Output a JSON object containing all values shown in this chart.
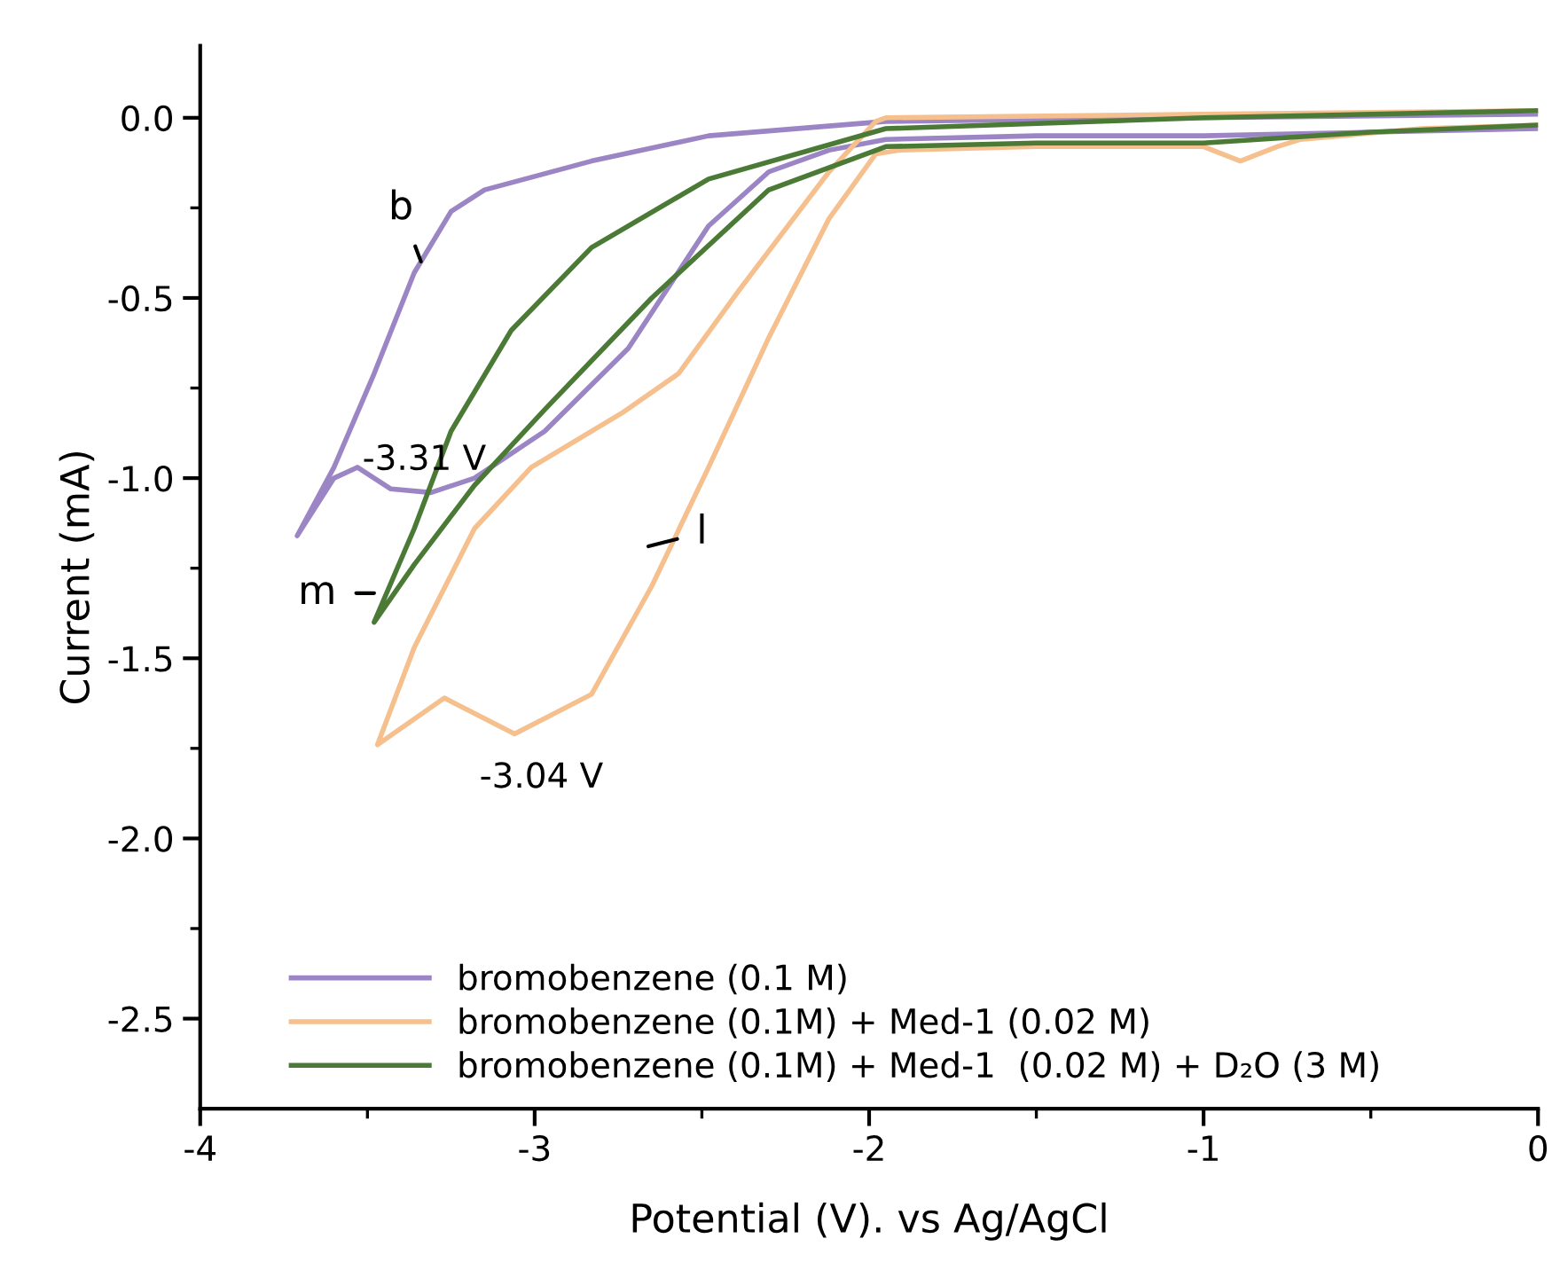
{
  "chart_data": {
    "type": "line",
    "xlabel": "Potential (V). vs Ag/AgCl",
    "ylabel": "Current (mA)",
    "xlim": [
      -4,
      0
    ],
    "ylim": [
      -2.75,
      0.2
    ],
    "xticks": [
      -4,
      {
        "value": -3.5,
        "label": null
      },
      -3,
      {
        "value": -2.5,
        "label": null
      },
      -2,
      {
        "value": -1.5,
        "label": null
      },
      -1,
      {
        "value": -0.5,
        "label": null
      },
      0
    ],
    "yticks": [
      {
        "value": 0,
        "label": "0.0"
      },
      {
        "value": -0.25,
        "label": null
      },
      {
        "value": -0.5,
        "label": "-0.5"
      },
      {
        "value": -0.75,
        "label": null
      },
      {
        "value": -1.0,
        "label": "-1.0"
      },
      {
        "value": -1.25,
        "label": null
      },
      {
        "value": -1.5,
        "label": "-1.5"
      },
      {
        "value": -1.75,
        "label": null
      },
      {
        "value": -2.0,
        "label": "-2.0"
      },
      {
        "value": -2.25,
        "label": null
      },
      {
        "value": -2.5,
        "label": "-2.5"
      }
    ],
    "grid": false,
    "legend": "bottom left",
    "marker": "none",
    "line_style": "solid",
    "series": [
      {
        "name": "bromobenzene (0.1 M)",
        "color": "#9b85c4",
        "x": [
          0,
          -0.5,
          -1.0,
          -1.5,
          -1.95,
          -2.12,
          -2.3,
          -2.48,
          -2.72,
          -2.97,
          -3.18,
          -3.31,
          -3.43,
          -3.53,
          -3.6,
          -3.71,
          -3.6,
          -3.48,
          -3.36,
          -3.25,
          -3.15,
          -2.83,
          -2.48,
          -1.95,
          -1.0,
          0
        ],
        "values": [
          -0.03,
          -0.04,
          -0.05,
          -0.05,
          -0.06,
          -0.09,
          -0.15,
          -0.3,
          -0.64,
          -0.87,
          -1.0,
          -1.04,
          -1.03,
          -0.97,
          -1.0,
          -1.16,
          -0.97,
          -0.71,
          -0.43,
          -0.26,
          -0.2,
          -0.12,
          -0.05,
          -0.01,
          0.0,
          0.01
        ]
      },
      {
        "name": "bromobenzene (0.1M) + Med-1 (0.02 M)",
        "color": "#f5c08e",
        "x": [
          0,
          -0.35,
          -0.71,
          -0.78,
          -0.89,
          -1.0,
          -1.5,
          -1.91,
          -1.98,
          -2.12,
          -2.3,
          -2.48,
          -2.65,
          -2.83,
          -3.06,
          -3.27,
          -3.47,
          -3.36,
          -3.18,
          -3.01,
          -2.74,
          -2.57,
          -2.39,
          -2.12,
          -1.98,
          -1.95,
          -1.0,
          0
        ],
        "values": [
          -0.02,
          -0.03,
          -0.06,
          -0.08,
          -0.12,
          -0.08,
          -0.08,
          -0.09,
          -0.1,
          -0.28,
          -0.61,
          -0.97,
          -1.3,
          -1.6,
          -1.71,
          -1.61,
          -1.74,
          -1.47,
          -1.14,
          -0.97,
          -0.82,
          -0.71,
          -0.48,
          -0.15,
          -0.01,
          0.0,
          0.01,
          0.02
        ]
      },
      {
        "name": "bromobenzene (0.1M) + Med-1  (0.02 M) + D₂O (3 M)",
        "color": "#4a7a35",
        "x": [
          0,
          -0.5,
          -1.0,
          -1.5,
          -1.95,
          -2.3,
          -2.65,
          -2.97,
          -3.18,
          -3.36,
          -3.48,
          -3.36,
          -3.25,
          -3.07,
          -2.83,
          -2.48,
          -1.95,
          -1.0,
          0
        ],
        "values": [
          -0.02,
          -0.04,
          -0.07,
          -0.07,
          -0.08,
          -0.2,
          -0.5,
          -0.81,
          -1.02,
          -1.24,
          -1.4,
          -1.14,
          -0.87,
          -0.59,
          -0.36,
          -0.17,
          -0.03,
          0.0,
          0.02
        ]
      }
    ],
    "annotations": [
      "b",
      "m",
      "l",
      "-3.31 V",
      "-3.04 V"
    ]
  }
}
